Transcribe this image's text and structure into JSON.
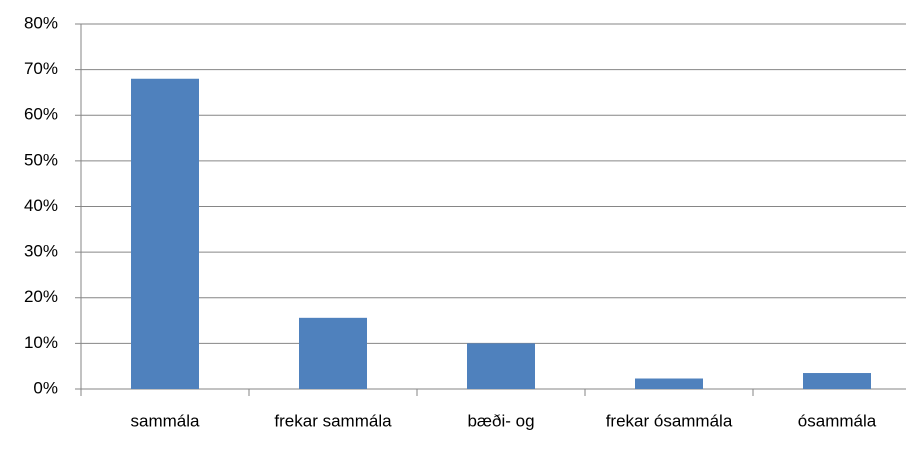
{
  "chart_data": {
    "type": "bar",
    "categories": [
      "sammála",
      "frekar sammála",
      "bæði- og",
      "frekar ósammála",
      "ósammála"
    ],
    "values": [
      68,
      15.6,
      10,
      2.3,
      3.5
    ],
    "color": "#4f81bd",
    "ylim": [
      0,
      80
    ],
    "yticks": [
      {
        "value": 0,
        "label": "0%"
      },
      {
        "value": 10,
        "label": "10%"
      },
      {
        "value": 20,
        "label": "20%"
      },
      {
        "value": 30,
        "label": "30%"
      },
      {
        "value": 40,
        "label": "40%"
      },
      {
        "value": 50,
        "label": "50%"
      },
      {
        "value": 60,
        "label": "60%"
      },
      {
        "value": 70,
        "label": "70%"
      },
      {
        "value": 80,
        "label": "80%"
      }
    ],
    "grid": true
  }
}
